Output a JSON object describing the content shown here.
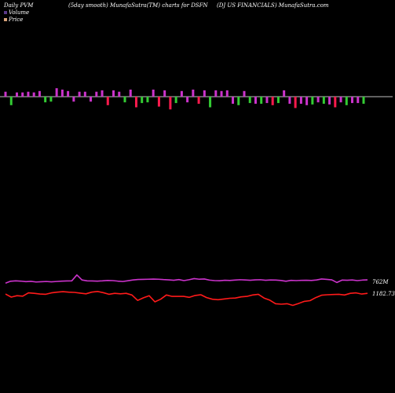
{
  "header": {
    "left": "Daily PVM",
    "center": "(5day smooth) MunafaSutra(TM) charts for DSFN",
    "right": "(DJ US FINANCIALS) MunafaSutra.com"
  },
  "legend": {
    "volume_label": "Volume",
    "price_label": "Price",
    "volume_color": "#5b3a8a",
    "price_color": "#d9a37a"
  },
  "chart_data": {
    "type": "line",
    "bars": {
      "name": "Volume bars",
      "up_color": "#cc33cc",
      "down_color": "#ff1a4d",
      "green_color": "#33cc33",
      "values": [
        7,
        -12,
        6,
        6,
        7,
        6,
        8,
        -8,
        -7,
        12,
        10,
        8,
        -7,
        7,
        7,
        -7,
        7,
        9,
        -12,
        9,
        7,
        -8,
        10,
        -15,
        -9,
        -8,
        10,
        -14,
        9,
        -18,
        -9,
        8,
        -8,
        10,
        -10,
        9,
        -15,
        9,
        8,
        9,
        -10,
        -12,
        8,
        -9,
        -10,
        -10,
        -9,
        -12,
        -9,
        9,
        -10,
        -16,
        -10,
        -12,
        -11,
        -8,
        -10,
        -11,
        -15,
        -8,
        -12,
        -9,
        -9,
        -10
      ],
      "colors": [
        "u",
        "g",
        "u",
        "u",
        "u",
        "u",
        "u",
        "g",
        "g",
        "u",
        "u",
        "u",
        "u",
        "u",
        "u",
        "u",
        "u",
        "u",
        "r",
        "u",
        "u",
        "g",
        "u",
        "r",
        "g",
        "g",
        "u",
        "r",
        "u",
        "r",
        "g",
        "u",
        "u",
        "u",
        "r",
        "u",
        "g",
        "u",
        "u",
        "u",
        "u",
        "g",
        "u",
        "g",
        "u",
        "g",
        "u",
        "r",
        "g",
        "u",
        "u",
        "r",
        "u",
        "u",
        "g",
        "u",
        "g",
        "u",
        "r",
        "u",
        "g",
        "u",
        "u",
        "g"
      ]
    },
    "volume_line": {
      "name": "Volume",
      "color": "#cc33cc",
      "values": [
        3.0,
        4.5,
        4.8,
        4.6,
        4.2,
        4.4,
        3.9,
        4.1,
        4.3,
        4.0,
        4.3,
        4.6,
        4.7,
        4.8,
        9.5,
        5.5,
        4.8,
        4.7,
        4.6,
        4.8,
        5.1,
        5.0,
        4.6,
        4.3,
        4.9,
        5.5,
        5.9,
        6.0,
        6.1,
        6.2,
        6.1,
        5.8,
        5.6,
        5.3,
        5.8,
        5.0,
        5.7,
        6.6,
        6.1,
        6.3,
        5.4,
        5.0,
        4.9,
        5.3,
        5.1,
        5.4,
        5.7,
        5.5,
        5.3,
        5.6,
        5.7,
        5.3,
        5.5,
        5.4,
        5.1,
        4.5,
        5.2,
        5.0,
        5.2,
        5.3,
        5.1,
        5.5,
        6.3,
        6.0,
        5.6,
        3.5,
        5.4,
        5.3,
        5.5,
        5.0,
        5.4,
        5.6
      ],
      "end_label": "762M"
    },
    "price_line": {
      "name": "Price",
      "color": "#ff1a1a",
      "values": [
        1.3,
        0.0,
        0.6,
        0.4,
        1.8,
        1.6,
        1.3,
        1.2,
        1.8,
        2.1,
        2.3,
        2.1,
        2.0,
        1.7,
        1.4,
        2.1,
        2.4,
        1.9,
        1.2,
        1.6,
        1.4,
        1.6,
        0.9,
        -1.4,
        -0.3,
        0.6,
        -2.0,
        -0.9,
        0.9,
        0.3,
        0.3,
        0.3,
        -0.1,
        0.7,
        1.0,
        -0.2,
        -0.9,
        -1.1,
        -0.8,
        -0.5,
        -0.4,
        0.1,
        0.3,
        0.9,
        1.2,
        -0.4,
        -1.3,
        -2.8,
        -3.0,
        -2.8,
        -3.5,
        -2.7,
        -1.8,
        -1.5,
        -0.2,
        0.8,
        1.0,
        1.1,
        1.2,
        0.9,
        1.6,
        1.8,
        1.3,
        1.6
      ],
      "end_label": "1182.73"
    }
  }
}
